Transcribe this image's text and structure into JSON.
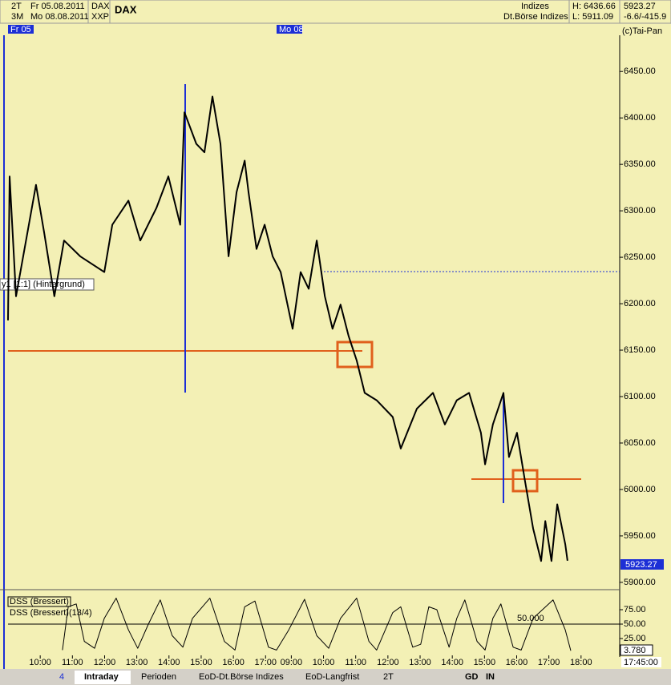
{
  "header": {
    "period": "2T",
    "date1": "Fr 05.08.2011",
    "sym1": "DAX",
    "range": "3M",
    "date2": "Mo 08.08.2011",
    "sym2": "XXP",
    "name": "DAX",
    "market": "Indizes",
    "exchange": "Dt.Börse Indizes",
    "high": "H: 6436.66",
    "low": "L: 5911.09",
    "last": "5923.27",
    "change": "-6.6/-415.9",
    "day1": "Fr 05",
    "day2": "Mo 08",
    "copyright": "(c)Tai-Pan",
    "layer": "y1 [1:1] (Hintergrund)",
    "cursor_time": "17:45:00"
  },
  "toolbar": {
    "count": "4",
    "tabs": [
      "Intraday",
      "Perioden",
      "EoD-Dt.Börse Indizes",
      "EoD-Langfrist"
    ],
    "period": "2T",
    "gd": "GD",
    "in": "IN"
  },
  "chart_data": [
    {
      "type": "line",
      "color": "#000000",
      "last_label": "5923.27",
      "x": [
        -1.0,
        -0.95,
        -0.75,
        -0.13,
        0.12,
        0.44,
        0.74,
        1.24,
        1.99,
        2.24,
        2.74,
        3.11,
        3.61,
        3.98,
        4.35,
        4.48,
        4.85,
        5.1,
        5.35,
        5.6,
        5.85,
        6.1,
        6.35,
        6.47,
        6.72,
        6.97,
        7.22,
        7.47,
        7.84,
        8.09,
        8.34,
        8.59,
        8.84,
        9.08,
        9.33,
        9.58,
        9.83,
        10.08,
        10.45,
        10.95,
        11.2,
        11.7,
        12.2,
        12.57,
        12.94,
        13.32,
        13.69,
        13.82,
        14.06,
        14.39,
        14.56,
        14.81,
        15.06,
        15.31,
        15.56,
        15.69,
        15.88,
        16.06,
        16.31,
        16.38
      ],
      "values": [
        6182,
        6337,
        6208,
        6328,
        6277,
        6208,
        6268,
        6251,
        6234,
        6285,
        6311,
        6268,
        6303,
        6337,
        6285,
        6406,
        6372,
        6363,
        6423,
        6372,
        6251,
        6320,
        6354,
        6320,
        6259,
        6285,
        6251,
        6234,
        6173,
        6234,
        6216,
        6268,
        6208,
        6173,
        6199,
        6165,
        6139,
        6104,
        6096,
        6078,
        6044,
        6087,
        6104,
        6070,
        6096,
        6104,
        6061,
        6027,
        6070,
        6104,
        6035,
        6061,
        6009,
        5958,
        5923,
        5966,
        5923,
        5984,
        5941,
        5923.27
      ],
      "xlim": [
        -1,
        18
      ],
      "ylim": [
        5893,
        6489
      ],
      "xticks": [
        {
          "value": 0,
          "label": "10:00"
        },
        {
          "value": 1,
          "label": "11:00"
        },
        {
          "value": 2,
          "label": "12:00"
        },
        {
          "value": 3,
          "label": "13:00"
        },
        {
          "value": 4,
          "label": "14:00"
        },
        {
          "value": 5,
          "label": "15:00"
        },
        {
          "value": 6,
          "label": "16:00"
        },
        {
          "value": 7,
          "label": "17:00"
        },
        {
          "value": 7.8,
          "label": "09:00"
        },
        {
          "value": 8.8,
          "label": "10:00"
        },
        {
          "value": 9.8,
          "label": "11:00"
        },
        {
          "value": 10.8,
          "label": "12:00"
        },
        {
          "value": 11.8,
          "label": "13:00"
        },
        {
          "value": 12.8,
          "label": "14:00"
        },
        {
          "value": 13.8,
          "label": "15:00"
        },
        {
          "value": 14.8,
          "label": "16:00"
        },
        {
          "value": 15.8,
          "label": "17:00"
        },
        {
          "value": 16.8,
          "label": "18:00"
        }
      ],
      "yticks": [
        {
          "value": 5900,
          "label": "5900.00"
        },
        {
          "value": 5950,
          "label": "5950.00"
        },
        {
          "value": 6000,
          "label": "6000.00"
        },
        {
          "value": 6050,
          "label": "6050.00"
        },
        {
          "value": 6100,
          "label": "6100.00"
        },
        {
          "value": 6150,
          "label": "6150.00"
        },
        {
          "value": 6200,
          "label": "6200.00"
        },
        {
          "value": 6250,
          "label": "6250.00"
        },
        {
          "value": 6300,
          "label": "6300.00"
        },
        {
          "value": 6350,
          "label": "6350.00"
        },
        {
          "value": 6400,
          "label": "6400.00"
        },
        {
          "value": 6450,
          "label": "6450.00"
        }
      ]
    },
    {
      "type": "line",
      "title": "DSS (Bressert)",
      "subtitle": "DSS (Bressert)(13/4)",
      "level_label": "50.000",
      "last_label": "3.780",
      "color": "#000000",
      "x": [
        0.69,
        0.87,
        1.12,
        1.37,
        1.69,
        1.99,
        2.36,
        2.74,
        3.03,
        3.36,
        3.73,
        4.1,
        4.43,
        4.73,
        5.27,
        5.72,
        6.05,
        6.35,
        6.67,
        7.09,
        7.34,
        7.72,
        8.21,
        8.59,
        8.96,
        9.33,
        9.83,
        10.21,
        10.45,
        10.95,
        11.2,
        11.57,
        11.82,
        12.07,
        12.32,
        12.7,
        12.94,
        13.19,
        13.57,
        13.82,
        14.06,
        14.31,
        14.69,
        14.94,
        15.31,
        15.93,
        16.31,
        16.48
      ],
      "values": [
        5,
        80,
        85,
        20,
        8,
        60,
        95,
        40,
        8,
        50,
        92,
        30,
        10,
        60,
        95,
        20,
        5,
        80,
        90,
        10,
        5,
        40,
        93,
        30,
        8,
        60,
        95,
        20,
        5,
        70,
        80,
        10,
        15,
        80,
        75,
        10,
        60,
        92,
        20,
        5,
        60,
        85,
        10,
        5,
        60,
        92,
        40,
        3.78
      ],
      "xlim": [
        -1,
        18
      ],
      "ylim": [
        0,
        100
      ],
      "yticks": [
        {
          "value": 25,
          "label": "25.00"
        },
        {
          "value": 50,
          "label": "50.00"
        },
        {
          "value": 75,
          "label": "75.00"
        }
      ]
    }
  ]
}
